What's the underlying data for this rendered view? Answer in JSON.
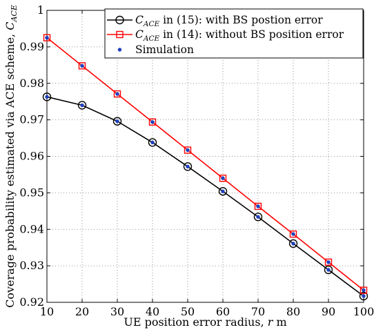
{
  "chart_data": {
    "type": "line",
    "title": "",
    "xlabel": "UE position error radius, r m",
    "ylabel": "Coverage probability estimated via ACE scheme, C_ACE",
    "xlim": [
      10,
      100
    ],
    "ylim": [
      0.92,
      1.0
    ],
    "x_ticks": [
      "10",
      "20",
      "30",
      "40",
      "50",
      "60",
      "70",
      "80",
      "90",
      "100"
    ],
    "y_ticks": [
      "0.92",
      "0.93",
      "0.94",
      "0.95",
      "0.96",
      "0.97",
      "0.98",
      "0.99",
      "1"
    ],
    "grid": true,
    "legend_position": "top-right",
    "x": [
      10,
      20,
      30,
      40,
      50,
      60,
      70,
      80,
      90,
      100
    ],
    "series": [
      {
        "name": "C_ACE in (15): with BS postion error",
        "legend_label": {
          "sym": "C",
          "sub": "ACE",
          "rest": " in (15): with BS postion error"
        },
        "color": "#000000",
        "marker": "circle",
        "values": [
          0.9763,
          0.974,
          0.9696,
          0.9638,
          0.9572,
          0.9504,
          0.9434,
          0.9361,
          0.9289,
          0.9217
        ]
      },
      {
        "name": "C_ACE in (14): without BS position error",
        "legend_label": {
          "sym": "C",
          "sub": "ACE",
          "rest": " in (14): without BS position error"
        },
        "color": "#ff0000",
        "marker": "square",
        "values": [
          0.9925,
          0.9848,
          0.9771,
          0.9694,
          0.9617,
          0.954,
          0.9463,
          0.9387,
          0.931,
          0.9233
        ]
      },
      {
        "name": "Simulation",
        "legend_label": {
          "sym": "",
          "sub": "",
          "rest": "Simulation"
        },
        "color": "#1f3fbf",
        "marker": "dot",
        "values_a": [
          0.9763,
          0.974,
          0.9696,
          0.9638,
          0.9572,
          0.9504,
          0.9434,
          0.9361,
          0.9289,
          0.9217
        ],
        "values_b": [
          0.9925,
          0.9848,
          0.9771,
          0.9694,
          0.9617,
          0.954,
          0.9463,
          0.9387,
          0.931,
          0.9233
        ]
      }
    ]
  }
}
